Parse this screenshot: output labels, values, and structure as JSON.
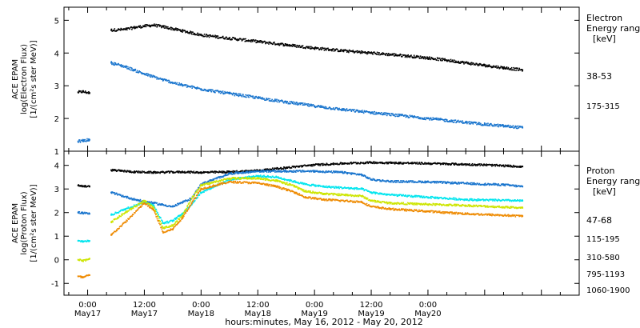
{
  "colors": {
    "black": "#000000",
    "blue": "#1874CD",
    "cyan": "#00E5EE",
    "yellow": "#CDE500",
    "orange": "#EE8A00"
  },
  "chart_data": [
    {
      "type": "scatter",
      "panel": "electron",
      "ylabel_lines": [
        "ACE EPAM",
        "log(Electron Flux)",
        "[1/(cm²s ster MeV)]"
      ],
      "legend_title_lines": [
        "Electron",
        "Energy range",
        "[keV]"
      ],
      "ylim": [
        1,
        5.4
      ],
      "yticks": [
        1,
        2,
        3,
        4,
        5
      ],
      "xlim_hours": [
        -5,
        104
      ],
      "grid": false,
      "series": [
        {
          "name": "38-53",
          "color": "#000000",
          "x": [
            -2,
            -1,
            0.4,
            5,
            8,
            10,
            12,
            14,
            16,
            20,
            24,
            30,
            36,
            42,
            48,
            54,
            60,
            66,
            72,
            76,
            80,
            84,
            88,
            92
          ],
          "y": [
            2.8,
            2.82,
            2.78,
            4.7,
            4.72,
            4.78,
            4.82,
            4.85,
            4.8,
            4.68,
            4.55,
            4.45,
            4.35,
            4.25,
            4.15,
            4.07,
            4.0,
            3.93,
            3.85,
            3.78,
            3.7,
            3.62,
            3.55,
            3.48
          ]
        },
        {
          "name": "175-315",
          "color": "#1874CD",
          "x": [
            -2,
            -1,
            0.4,
            5,
            8,
            10,
            12,
            16,
            20,
            24,
            30,
            36,
            42,
            48,
            54,
            60,
            66,
            72,
            76,
            80,
            84,
            88,
            92
          ],
          "y": [
            1.3,
            1.32,
            1.35,
            3.7,
            3.58,
            3.47,
            3.36,
            3.18,
            3.02,
            2.9,
            2.76,
            2.63,
            2.5,
            2.38,
            2.27,
            2.18,
            2.09,
            2.0,
            1.94,
            1.88,
            1.82,
            1.77,
            1.72
          ]
        }
      ]
    },
    {
      "type": "scatter",
      "panel": "proton",
      "ylabel_lines": [
        "ACE EPAM",
        "log(Proton Flux)",
        "[1/(cm²s ster MeV)]"
      ],
      "legend_title_lines": [
        "Proton",
        "Energy range",
        "[keV]"
      ],
      "ylim": [
        -1.5,
        4.6
      ],
      "yticks": [
        -1,
        0,
        1,
        2,
        3,
        4
      ],
      "xlim_hours": [
        -5,
        104
      ],
      "grid": false,
      "series": [
        {
          "name": "47-68",
          "color": "#000000",
          "x": [
            -2,
            -1,
            0.4,
            5,
            10,
            14,
            20,
            24,
            30,
            36,
            42,
            48,
            54,
            60,
            66,
            72,
            78,
            84,
            88,
            92
          ],
          "y": [
            3.15,
            3.12,
            3.1,
            3.8,
            3.72,
            3.7,
            3.72,
            3.7,
            3.72,
            3.78,
            3.9,
            4.02,
            4.08,
            4.12,
            4.1,
            4.08,
            4.05,
            4.02,
            3.98,
            3.95
          ]
        },
        {
          "name": "115-195",
          "color": "#1874CD",
          "x": [
            -2,
            -1,
            0.4,
            5,
            10,
            14,
            18,
            22,
            24,
            30,
            36,
            42,
            48,
            54,
            58,
            60,
            64,
            72,
            78,
            84,
            88,
            92
          ],
          "y": [
            2.0,
            1.98,
            1.95,
            2.85,
            2.55,
            2.4,
            2.25,
            2.6,
            3.2,
            3.65,
            3.75,
            3.75,
            3.75,
            3.7,
            3.6,
            3.4,
            3.32,
            3.3,
            3.25,
            3.2,
            3.18,
            3.1
          ]
        },
        {
          "name": "310-580",
          "color": "#00E5EE",
          "x": [
            -2,
            -1,
            0.4,
            5,
            8,
            12,
            14,
            16,
            18,
            20,
            22,
            24,
            30,
            36,
            40,
            44,
            46,
            50,
            58,
            60,
            64,
            72,
            80,
            92
          ],
          "y": [
            0.8,
            0.78,
            0.8,
            1.9,
            2.15,
            2.45,
            2.3,
            1.55,
            1.65,
            1.95,
            2.35,
            2.85,
            3.4,
            3.55,
            3.5,
            3.3,
            3.2,
            3.1,
            3.0,
            2.85,
            2.75,
            2.65,
            2.55,
            2.5
          ]
        },
        {
          "name": "795-1193",
          "color": "#CDE500",
          "x": [
            -2,
            -1,
            0.4,
            5,
            8,
            12,
            14,
            16,
            18,
            20,
            22,
            24,
            30,
            36,
            40,
            44,
            46,
            50,
            58,
            60,
            64,
            72,
            80,
            92
          ],
          "y": [
            0.0,
            -0.05,
            0.05,
            1.6,
            2.0,
            2.5,
            2.2,
            1.35,
            1.45,
            1.85,
            2.6,
            3.15,
            3.45,
            3.45,
            3.35,
            3.1,
            2.9,
            2.8,
            2.7,
            2.5,
            2.4,
            2.35,
            2.3,
            2.2
          ]
        },
        {
          "name": "1060-1900",
          "color": "#EE8A00",
          "x": [
            -2,
            -1,
            0.4,
            5,
            8,
            12,
            14,
            16,
            18,
            20,
            22,
            24,
            30,
            36,
            40,
            44,
            46,
            50,
            58,
            60,
            64,
            72,
            80,
            92
          ],
          "y": [
            -0.7,
            -0.75,
            -0.65,
            1.05,
            1.6,
            2.4,
            2.1,
            1.15,
            1.3,
            1.75,
            2.4,
            3.0,
            3.3,
            3.25,
            3.1,
            2.85,
            2.65,
            2.55,
            2.45,
            2.25,
            2.15,
            2.05,
            1.95,
            1.85
          ]
        }
      ]
    }
  ],
  "x_axis": {
    "tick_labels": [
      {
        "hours": 0,
        "time": "0:00",
        "date": "May17"
      },
      {
        "hours": 12,
        "time": "12:00",
        "date": "May17"
      },
      {
        "hours": 24,
        "time": "0:00",
        "date": "May18"
      },
      {
        "hours": 36,
        "time": "12:00",
        "date": "May18"
      },
      {
        "hours": 48,
        "time": "0:00",
        "date": "May19"
      },
      {
        "hours": 60,
        "time": "12:00",
        "date": "May19"
      },
      {
        "hours": 72,
        "time": "0:00",
        "date": "May20"
      }
    ],
    "title": "hours:minutes, May 16, 2012 - May 20, 2012"
  }
}
